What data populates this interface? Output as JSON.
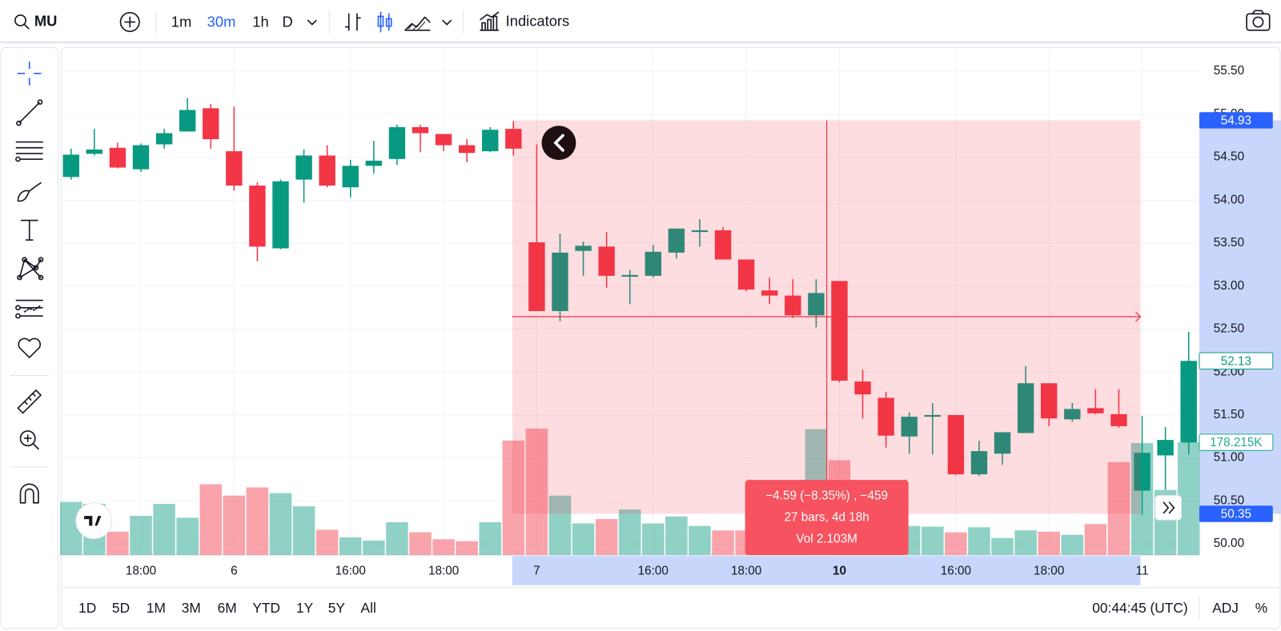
{
  "toolbar": {
    "symbol": "MU",
    "intervals": [
      "1m",
      "30m",
      "1h",
      "D"
    ],
    "active_interval": "30m",
    "indicators": "Indicators"
  },
  "chart_data": {
    "type": "candlestick",
    "categories": [
      null,
      null,
      null,
      "18:00",
      null,
      null,
      null,
      "6",
      null,
      null,
      null,
      null,
      "16:00",
      null,
      null,
      null,
      "18:00",
      null,
      null,
      null,
      "7",
      null,
      null,
      null,
      null,
      "16:00",
      null,
      null,
      null,
      "18:00",
      null,
      null,
      null,
      "10",
      null,
      null,
      null,
      null,
      "16:00",
      null,
      null,
      null,
      "18:00",
      null,
      null,
      null,
      "11",
      null,
      null
    ],
    "open": [
      54.27,
      54.54,
      54.61,
      54.36,
      54.65,
      54.8,
      55.07,
      54.57,
      54.17,
      53.44,
      54.24,
      54.52,
      54.15,
      54.4,
      54.48,
      54.85,
      54.77,
      54.64,
      54.57,
      54.83,
      53.51,
      52.71,
      53.41,
      53.46,
      53.11,
      53.12,
      53.39,
      53.63,
      53.65,
      53.31,
      52.95,
      52.89,
      52.66,
      53.06,
      51.89,
      51.7,
      51.25,
      51.48,
      51.5,
      50.81,
      51.05,
      51.29,
      51.87,
      51.45,
      51.58,
      51.51,
      50.62,
      51.03,
      51.18
    ],
    "high": [
      54.6,
      54.83,
      54.67,
      54.66,
      54.83,
      55.19,
      55.12,
      55.09,
      54.21,
      54.24,
      54.59,
      54.64,
      54.47,
      54.69,
      54.88,
      54.88,
      54.77,
      54.71,
      54.85,
      54.92,
      54.65,
      53.61,
      53.52,
      53.63,
      53.19,
      53.48,
      53.67,
      53.78,
      53.69,
      53.31,
      53.1,
      53.08,
      53.08,
      53.06,
      52.03,
      51.77,
      51.53,
      51.64,
      51.5,
      51.2,
      51.3,
      52.07,
      51.87,
      51.64,
      51.8,
      51.8,
      51.49,
      51.36,
      52.47
    ],
    "low": [
      54.24,
      54.52,
      54.37,
      54.33,
      54.6,
      54.8,
      54.6,
      54.11,
      53.29,
      53.43,
      53.97,
      54.15,
      54.03,
      54.31,
      54.41,
      54.56,
      54.57,
      54.44,
      54.56,
      54.52,
      52.71,
      52.59,
      53.12,
      52.98,
      52.79,
      53.1,
      53.32,
      53.46,
      53.31,
      52.94,
      52.79,
      52.63,
      52.52,
      51.88,
      51.46,
      51.12,
      51.05,
      51.04,
      50.8,
      50.79,
      50.92,
      51.29,
      51.37,
      51.42,
      51.51,
      51.35,
      50.34,
      50.63,
      51.04
    ],
    "close": [
      54.53,
      54.59,
      54.38,
      54.64,
      54.78,
      55.05,
      54.71,
      54.17,
      53.46,
      54.22,
      54.52,
      54.17,
      54.4,
      54.46,
      54.85,
      54.78,
      54.64,
      54.55,
      54.82,
      54.6,
      52.71,
      53.39,
      53.47,
      53.12,
      53.13,
      53.4,
      53.67,
      53.65,
      53.31,
      52.96,
      52.89,
      52.66,
      52.92,
      51.9,
      51.74,
      51.26,
      51.48,
      51.5,
      50.81,
      51.08,
      51.3,
      51.87,
      51.46,
      51.57,
      51.52,
      51.37,
      51.06,
      51.21,
      52.13
    ],
    "volume": [
      84000,
      81000,
      37000,
      62000,
      81000,
      59000,
      112000,
      94000,
      107000,
      98000,
      77000,
      40000,
      28000,
      23000,
      52000,
      36000,
      25000,
      22000,
      52000,
      181000,
      200000,
      94000,
      50000,
      57000,
      72000,
      50000,
      61000,
      46000,
      39000,
      39000,
      45000,
      39000,
      199000,
      150000,
      52000,
      45000,
      46000,
      45000,
      36000,
      44000,
      27000,
      39000,
      37000,
      32000,
      49000,
      147000,
      177000,
      103000,
      178215
    ],
    "volume_value_labels": [
      null,
      null,
      null,
      null,
      null,
      null,
      null,
      null,
      null,
      null,
      null,
      null,
      null,
      null,
      null,
      null,
      null,
      null,
      null,
      null,
      null,
      null,
      null,
      null,
      null,
      null,
      null,
      null,
      null,
      null,
      null,
      null,
      null,
      null,
      null,
      null,
      null,
      null,
      null,
      null,
      null,
      null,
      null,
      null,
      null,
      null,
      null,
      null,
      "178.215K"
    ],
    "up_color": "#089981",
    "down_color": "#f23645",
    "ylim": [
      49.87,
      55.76
    ],
    "yticks": [
      {
        "value": 50,
        "label": "50.00"
      },
      {
        "value": 50.5,
        "label": "50.50"
      },
      {
        "value": 51,
        "label": "51.00"
      },
      {
        "value": 51.5,
        "label": "51.50"
      },
      {
        "value": 52,
        "label": "52.00"
      },
      {
        "value": 52.5,
        "label": "52.50"
      },
      {
        "value": 53,
        "label": "53.00"
      },
      {
        "value": 53.5,
        "label": "53.50"
      },
      {
        "value": 54,
        "label": "54.00"
      },
      {
        "value": 54.5,
        "label": "54.50"
      },
      {
        "value": 55,
        "label": "55.00"
      },
      {
        "value": 55.5,
        "label": "55.50"
      }
    ],
    "grid": true,
    "measure": {
      "top": 54.93,
      "bottom": 50.35,
      "lines": [
        "−4.59 (−8.35%) , −459",
        "27 bars, 4d 18h",
        "Vol 2.103M"
      ]
    }
  },
  "footer": {
    "ranges": [
      "1D",
      "5D",
      "1M",
      "3M",
      "6M",
      "YTD",
      "1Y",
      "5Y",
      "All"
    ],
    "clock": "00:44:45 (UTC)",
    "adjust": "ADJ",
    "percent": "%"
  }
}
